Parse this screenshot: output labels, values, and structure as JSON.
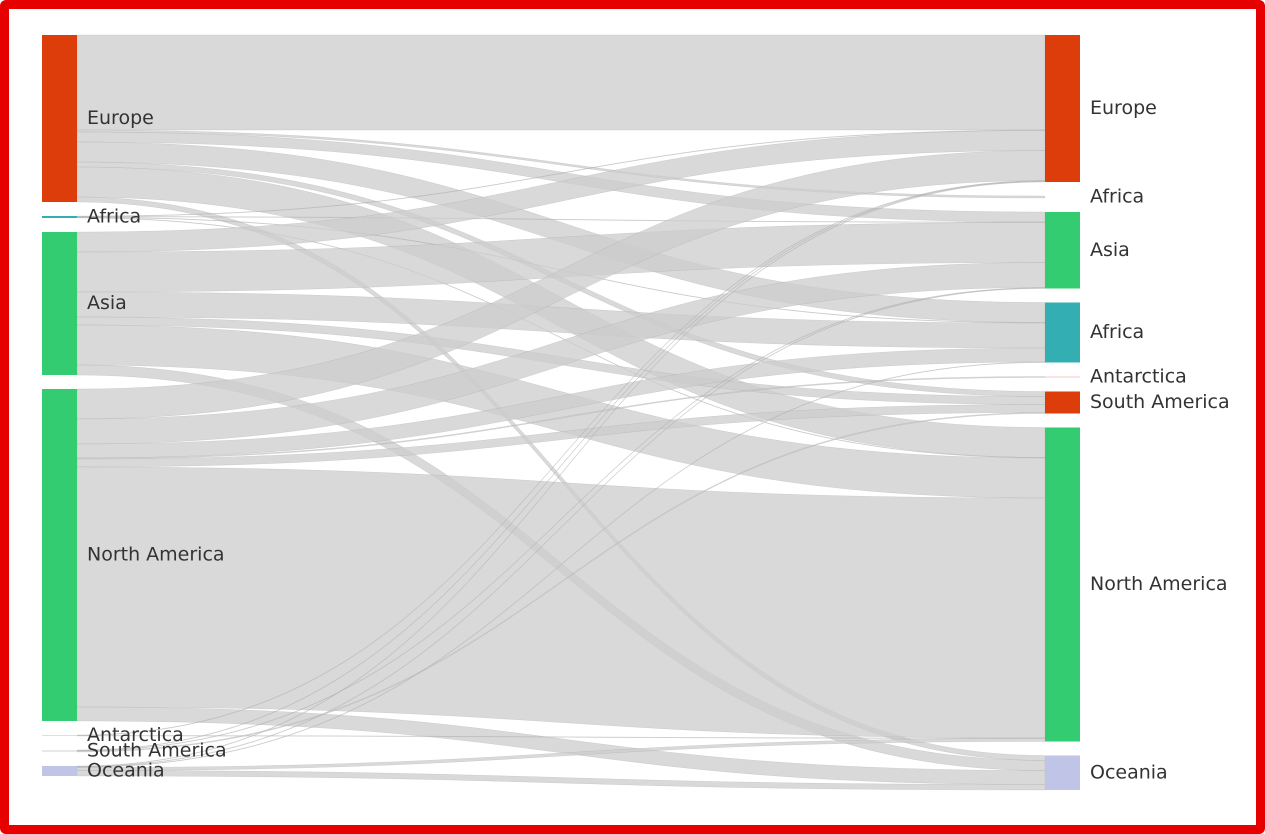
{
  "chart_data": {
    "type": "sankey",
    "left_nodes": [
      {
        "name": "Europe",
        "color": "#dd3c0b"
      },
      {
        "name": "Africa",
        "color": "#33aeb3"
      },
      {
        "name": "Asia",
        "color": "#33cc70"
      },
      {
        "name": "North America",
        "color": "#33cc70"
      },
      {
        "name": "Antarctica",
        "color": "#f3d6d6"
      },
      {
        "name": "South America",
        "color": "#e8e8e8"
      },
      {
        "name": "Oceania",
        "color": "#c0c4e6"
      }
    ],
    "right_nodes": [
      {
        "name": "Europe",
        "color": "#dd3c0b"
      },
      {
        "name": "Africa",
        "color": "#ffffff"
      },
      {
        "name": "Asia",
        "color": "#33cc70"
      },
      {
        "name": "Africa",
        "color": "#33aeb3"
      },
      {
        "name": "Antarctica",
        "color": "#f3c9c9"
      },
      {
        "name": "South America",
        "color": "#dd3c0b"
      },
      {
        "name": "North America",
        "color": "#33cc70"
      },
      {
        "name": "Oceania",
        "color": "#c0c4e6"
      }
    ],
    "link_color": "#cccccc",
    "links": [
      {
        "source": 0,
        "target": 0,
        "value": 95
      },
      {
        "source": 0,
        "target": 1,
        "value": 2
      },
      {
        "source": 0,
        "target": 2,
        "value": 10
      },
      {
        "source": 0,
        "target": 3,
        "value": 20
      },
      {
        "source": 0,
        "target": 5,
        "value": 5
      },
      {
        "source": 0,
        "target": 6,
        "value": 30
      },
      {
        "source": 0,
        "target": 7,
        "value": 5
      },
      {
        "source": 1,
        "target": 0,
        "value": 0.5
      },
      {
        "source": 1,
        "target": 2,
        "value": 0.5
      },
      {
        "source": 1,
        "target": 3,
        "value": 0.5
      },
      {
        "source": 1,
        "target": 6,
        "value": 0.5
      },
      {
        "source": 2,
        "target": 0,
        "value": 20
      },
      {
        "source": 2,
        "target": 2,
        "value": 40
      },
      {
        "source": 2,
        "target": 3,
        "value": 25
      },
      {
        "source": 2,
        "target": 5,
        "value": 8
      },
      {
        "source": 2,
        "target": 6,
        "value": 40
      },
      {
        "source": 2,
        "target": 7,
        "value": 10
      },
      {
        "source": 3,
        "target": 0,
        "value": 30
      },
      {
        "source": 3,
        "target": 2,
        "value": 25
      },
      {
        "source": 3,
        "target": 3,
        "value": 14
      },
      {
        "source": 3,
        "target": 4,
        "value": 1
      },
      {
        "source": 3,
        "target": 5,
        "value": 8
      },
      {
        "source": 3,
        "target": 6,
        "value": 240
      },
      {
        "source": 3,
        "target": 7,
        "value": 14
      },
      {
        "source": 4,
        "target": 0,
        "value": 0.5
      },
      {
        "source": 4,
        "target": 6,
        "value": 0.5
      },
      {
        "source": 5,
        "target": 0,
        "value": 0.5
      },
      {
        "source": 5,
        "target": 2,
        "value": 0.5
      },
      {
        "source": 5,
        "target": 5,
        "value": 1
      },
      {
        "source": 6,
        "target": 0,
        "value": 0.5
      },
      {
        "source": 6,
        "target": 2,
        "value": 0.5
      },
      {
        "source": 6,
        "target": 3,
        "value": 0.5
      },
      {
        "source": 6,
        "target": 6,
        "value": 3
      },
      {
        "source": 6,
        "target": 7,
        "value": 5.5
      }
    ]
  }
}
